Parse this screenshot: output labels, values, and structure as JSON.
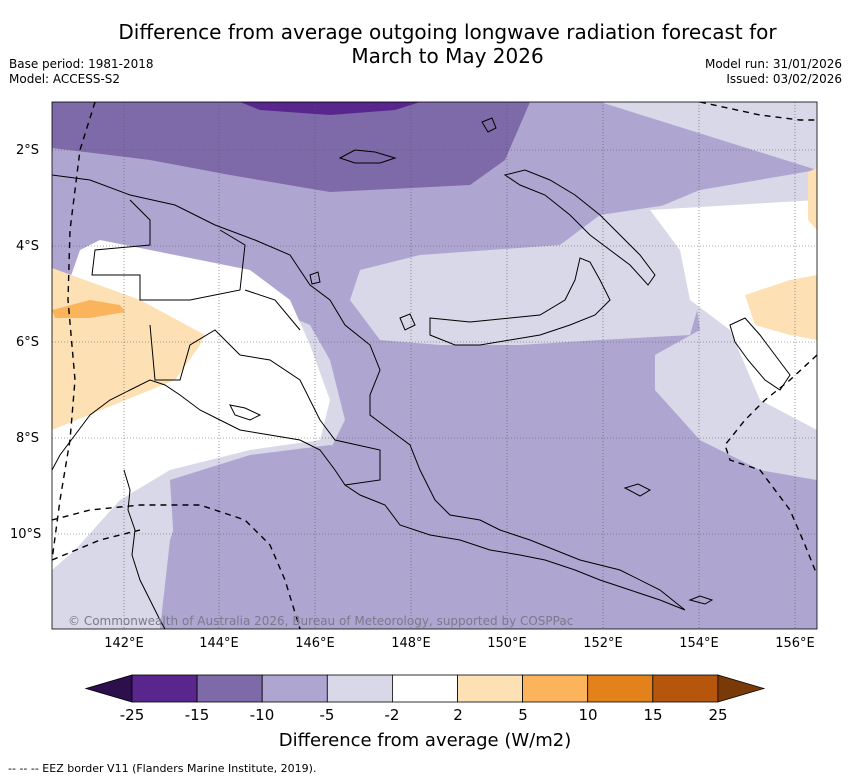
{
  "title_line1": "Difference from average outgoing longwave radiation forecast for",
  "title_line2": "March to May 2026",
  "meta": {
    "base_period": "Base period: 1981-2018",
    "model": "Model: ACCESS-S2",
    "model_run": "Model run: 31/01/2026",
    "issued": "Issued: 03/02/2026"
  },
  "map": {
    "lat_labels": [
      "2°S",
      "4°S",
      "6°S",
      "8°S",
      "10°S"
    ],
    "lon_labels": [
      "142°E",
      "144°E",
      "146°E",
      "148°E",
      "150°E",
      "152°E",
      "154°E",
      "156°E"
    ],
    "credit": "© Commonwealth of Australia 2026, Bureau of Meteorology, supported by COSPPac"
  },
  "legend": {
    "title": "Difference from average (W/m2)",
    "ticks": [
      "-25",
      "-15",
      "-10",
      "-5",
      "-2",
      "2",
      "5",
      "10",
      "15",
      "25"
    ],
    "colors": [
      "#2d0f4d",
      "#58268c",
      "#7e6aa8",
      "#aea6d0",
      "#d8d8e8",
      "#ffffff",
      "#fde0b4",
      "#fbb45c",
      "#e3811b",
      "#b5560c",
      "#7a3a08"
    ],
    "footnote": "--  --  -- EEZ border V11 (Flanders Marine Institute, 2019)."
  }
}
